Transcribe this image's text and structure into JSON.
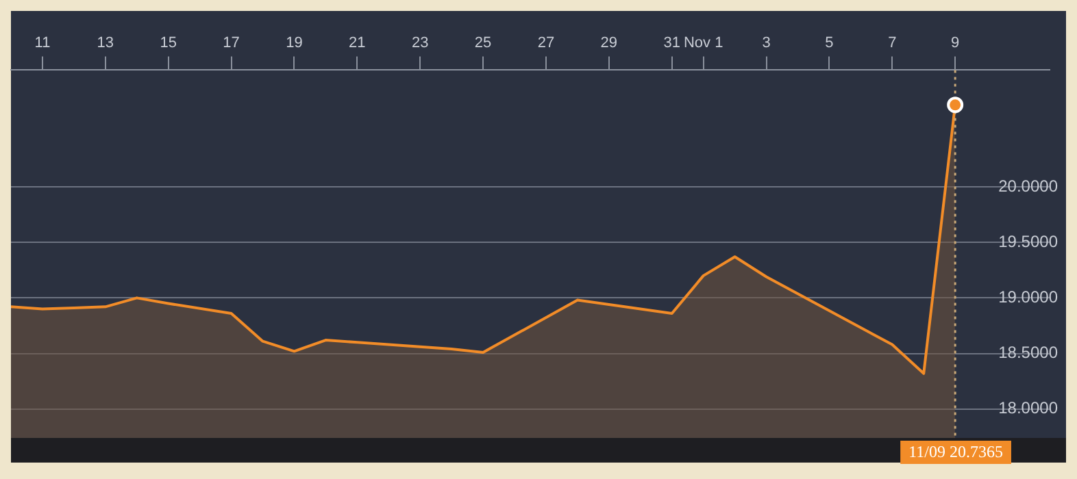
{
  "chart_data": {
    "type": "area",
    "x": [
      "--10-10",
      "--10-11",
      "--10-12",
      "--10-13",
      "--10-14",
      "--10-15",
      "--10-17",
      "--10-18",
      "--10-19",
      "--10-20",
      "--10-21",
      "--10-24",
      "--10-25",
      "--10-28",
      "--10-31",
      "--11-01",
      "--11-02",
      "--11-03",
      "--11-07",
      "--11-08",
      "--11-09"
    ],
    "series": [
      {
        "color": "#f28c28",
        "values": [
          18.92,
          18.9,
          18.91,
          18.92,
          19.0,
          18.95,
          18.86,
          18.61,
          18.52,
          18.62,
          18.6,
          18.54,
          18.51,
          18.98,
          18.86,
          19.2,
          19.37,
          19.19,
          18.58,
          18.32,
          20.7365
        ]
      }
    ],
    "xlim": [
      "--10-10",
      "--11-12"
    ],
    "xticks": [
      {
        "value": "--10-11",
        "label": "11"
      },
      {
        "value": "--10-13",
        "label": "13"
      },
      {
        "value": "--10-15",
        "label": "15"
      },
      {
        "value": "--10-17",
        "label": "17"
      },
      {
        "value": "--10-19",
        "label": "19"
      },
      {
        "value": "--10-21",
        "label": "21"
      },
      {
        "value": "--10-23",
        "label": "23"
      },
      {
        "value": "--10-25",
        "label": "25"
      },
      {
        "value": "--10-27",
        "label": "27"
      },
      {
        "value": "--10-29",
        "label": "29"
      },
      {
        "value": "--10-31",
        "label": "31"
      },
      {
        "value": "--11-01",
        "label": "Nov 1"
      },
      {
        "value": "--11-03",
        "label": "3"
      },
      {
        "value": "--11-05",
        "label": "5"
      },
      {
        "value": "--11-07",
        "label": "7"
      },
      {
        "value": "--11-09",
        "label": "9"
      }
    ],
    "ylim": [
      17.74,
      21.05
    ],
    "yticks": [
      {
        "value": 18,
        "label": "18.0000"
      },
      {
        "value": 18.5,
        "label": "18.5000"
      },
      {
        "value": 19,
        "label": "19.0000"
      },
      {
        "value": 19.5,
        "label": "19.5000"
      },
      {
        "value": 20,
        "label": "20.0000"
      }
    ],
    "grid": "y",
    "legend": false,
    "marker": "none",
    "ref_lines": [
      {
        "axis": "x",
        "value": "--11-09",
        "line_style": "dotted",
        "color": "#c8a878"
      }
    ],
    "annotations": [
      "11/09 20.7365"
    ]
  }
}
